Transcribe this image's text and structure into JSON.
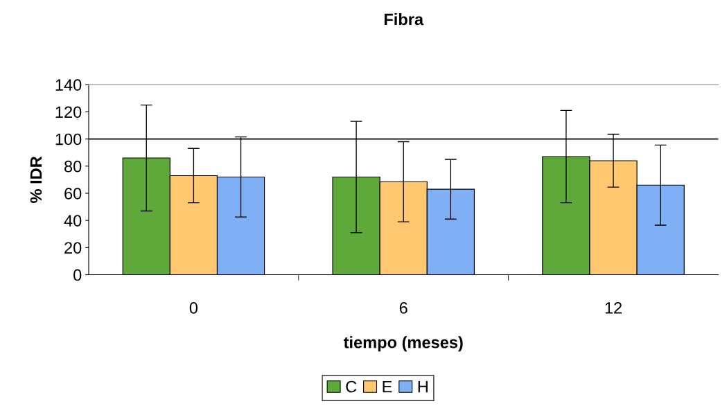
{
  "chart_data": {
    "type": "bar",
    "title": "Fibra",
    "xlabel": "tiempo (meses)",
    "ylabel": "% IDR",
    "categories": [
      "0",
      "6",
      "12"
    ],
    "series": [
      {
        "name": "C",
        "color": "#5fa83a",
        "values": [
          86,
          72,
          87
        ],
        "errors": [
          39,
          41,
          34
        ]
      },
      {
        "name": "E",
        "color": "#ffc870",
        "values": [
          73,
          68.5,
          84
        ],
        "errors": [
          20,
          29.5,
          19.5
        ]
      },
      {
        "name": "H",
        "color": "#7fb0f5",
        "values": [
          72,
          63,
          66
        ],
        "errors": [
          29.5,
          22,
          29.5
        ]
      }
    ],
    "ylim": [
      0,
      140
    ],
    "yticks": [
      0,
      20,
      40,
      60,
      80,
      100,
      120,
      140
    ],
    "ref_lines": [
      {
        "axis": "y",
        "value": 100,
        "color": "#000000"
      }
    ],
    "grid": false,
    "legend": "bottom"
  }
}
